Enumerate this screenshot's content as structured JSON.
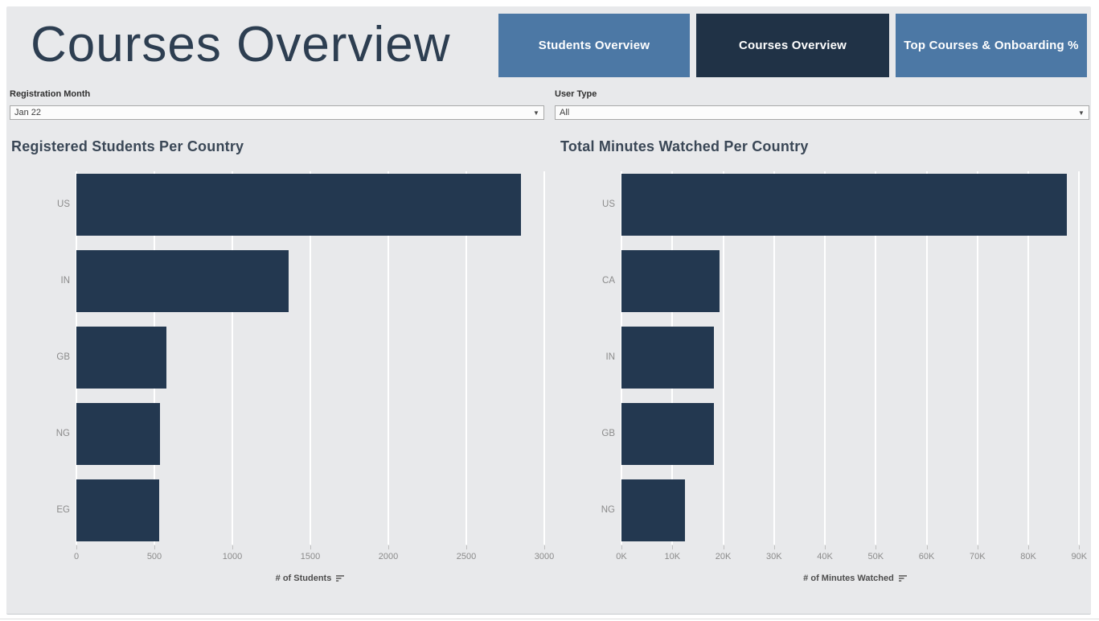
{
  "page": {
    "title": "Courses Overview"
  },
  "nav": {
    "buttons": [
      {
        "label": "Students Overview",
        "active": false
      },
      {
        "label": "Courses Overview",
        "active": true
      },
      {
        "label": "Top Courses & Onboarding %",
        "active": false
      }
    ]
  },
  "filters": {
    "registration_month": {
      "label": "Registration Month",
      "value": "Jan 22"
    },
    "user_type": {
      "label": "User Type",
      "value": "All"
    }
  },
  "icons": {
    "dropdown_arrow": "▼",
    "sort_descending": "three descending horizontal bars"
  },
  "colors": {
    "dashboard_background": "#e8e9eb",
    "bar_navy": "#233850",
    "button_steel_blue": "#4c78a5",
    "button_active_navy": "#203246",
    "title_navy": "#2d3e51",
    "gridline": "#ffffff",
    "axis_text_gray": "#8b8b8b"
  },
  "chart_data": [
    {
      "type": "bar",
      "orientation": "horizontal",
      "title": "Registered Students Per Country",
      "categories": [
        "US",
        "IN",
        "GB",
        "NG",
        "EG"
      ],
      "values": [
        2851,
        1360,
        578,
        537,
        530
      ],
      "xlabel": "# of Students",
      "ylabel": "",
      "xlim": [
        0,
        3000
      ],
      "xticks": [
        0,
        500,
        1000,
        1500,
        2000,
        2500,
        3000
      ],
      "tick_labels": [
        "0",
        "500",
        "1000",
        "1500",
        "2000",
        "2500",
        "3000"
      ],
      "grid": true,
      "legend": "none"
    },
    {
      "type": "bar",
      "orientation": "horizontal",
      "title": "Total Minutes Watched Per Country",
      "categories": [
        "US",
        "CA",
        "IN",
        "GB",
        "NG"
      ],
      "values": [
        87500,
        19300,
        18200,
        18100,
        12500
      ],
      "xlabel": "# of Minutes Watched",
      "ylabel": "",
      "xlim": [
        0,
        92000
      ],
      "xticks": [
        0,
        10000,
        20000,
        30000,
        40000,
        50000,
        60000,
        70000,
        80000,
        90000
      ],
      "tick_labels": [
        "0K",
        "10K",
        "20K",
        "30K",
        "40K",
        "50K",
        "60K",
        "70K",
        "80K",
        "90K"
      ],
      "grid": true,
      "legend": "none"
    }
  ]
}
